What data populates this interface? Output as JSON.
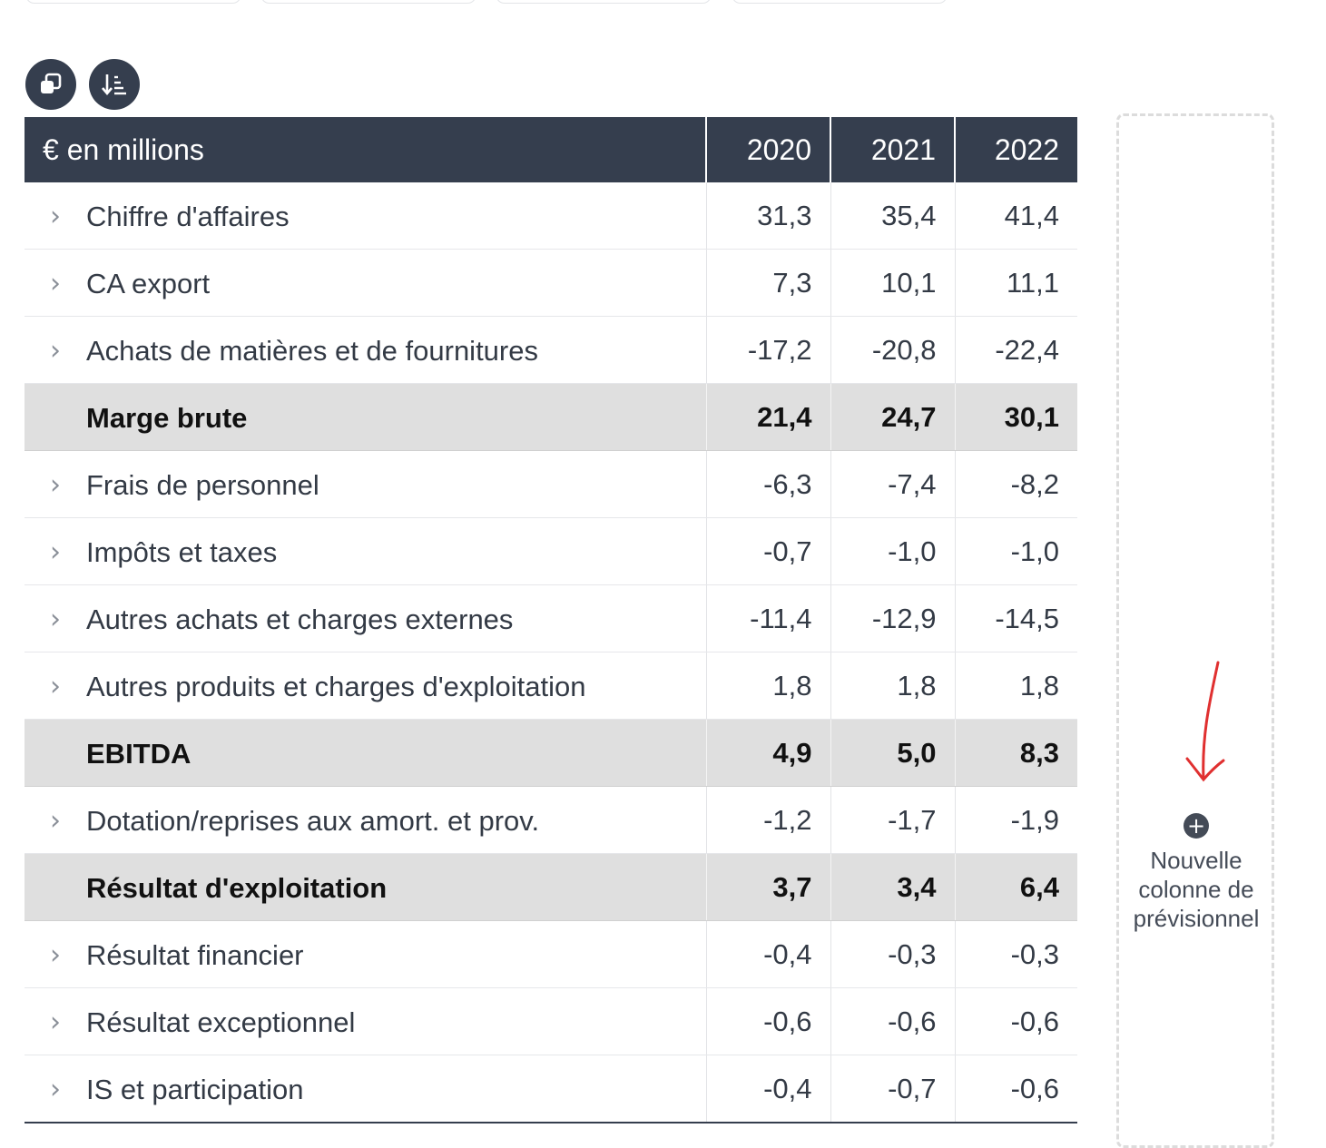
{
  "toolbar": {
    "copy_icon": "copy-icon",
    "sort_icon": "sort-list-icon"
  },
  "table": {
    "header_label": "€ en millions",
    "years": [
      "2020",
      "2021",
      "2022"
    ],
    "rows": [
      {
        "label": "Chiffre d'affaires",
        "values": [
          "31,3",
          "35,4",
          "41,4"
        ],
        "expandable": true
      },
      {
        "label": "CA export",
        "values": [
          "7,3",
          "10,1",
          "11,1"
        ],
        "expandable": true
      },
      {
        "label": "Achats de matières et de fournitures",
        "values": [
          "-17,2",
          "-20,8",
          "-22,4"
        ],
        "expandable": true
      },
      {
        "label": "Marge brute",
        "values": [
          "21,4",
          "24,7",
          "30,1"
        ],
        "expandable": false
      },
      {
        "label": "Frais de personnel",
        "values": [
          "-6,3",
          "-7,4",
          "-8,2"
        ],
        "expandable": true
      },
      {
        "label": "Impôts et taxes",
        "values": [
          "-0,7",
          "-1,0",
          "-1,0"
        ],
        "expandable": true
      },
      {
        "label": "Autres achats et charges externes",
        "values": [
          "-11,4",
          "-12,9",
          "-14,5"
        ],
        "expandable": true
      },
      {
        "label": "Autres produits et charges d'exploitation",
        "values": [
          "1,8",
          "1,8",
          "1,8"
        ],
        "expandable": true
      },
      {
        "label": "EBITDA",
        "values": [
          "4,9",
          "5,0",
          "8,3"
        ],
        "expandable": false
      },
      {
        "label": "Dotation/reprises aux amort. et prov.",
        "values": [
          "-1,2",
          "-1,7",
          "-1,9"
        ],
        "expandable": true
      },
      {
        "label": "Résultat d'exploitation",
        "values": [
          "3,7",
          "3,4",
          "6,4"
        ],
        "expandable": false
      },
      {
        "label": "Résultat financier",
        "values": [
          "-0,4",
          "-0,3",
          "-0,3"
        ],
        "expandable": true
      },
      {
        "label": "Résultat exceptionnel",
        "values": [
          "-0,6",
          "-0,6",
          "-0,6"
        ],
        "expandable": true
      },
      {
        "label": "IS et participation",
        "values": [
          "-0,4",
          "-0,7",
          "-0,6"
        ],
        "expandable": true
      }
    ]
  },
  "forecast": {
    "add_line1": "Nouvelle",
    "add_line2": "colonne de",
    "add_line3": "prévisionnel"
  },
  "colors": {
    "header_bg": "#353e4e",
    "subtotal_bg": "#dfdfdf",
    "annotation_arrow": "#e03030"
  }
}
